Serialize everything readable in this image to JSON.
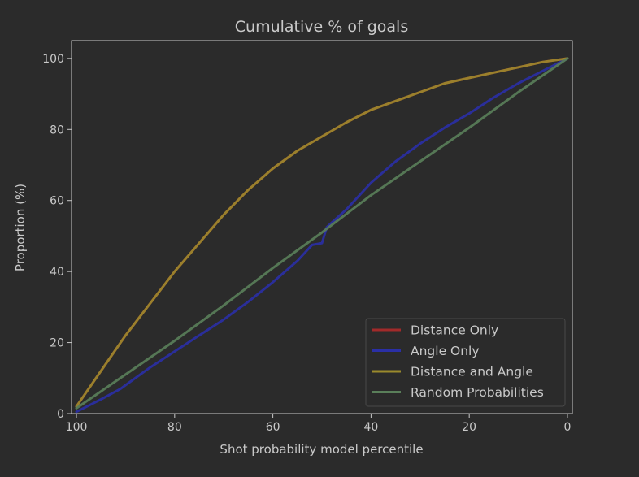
{
  "chart_data": {
    "type": "line",
    "title": "Cumulative % of goals",
    "xlabel": "Shot probability model percentile",
    "ylabel": "Proportion (%)",
    "xlim": [
      101,
      -1
    ],
    "ylim": [
      0,
      105
    ],
    "x_inverted": true,
    "xticks": [
      100,
      80,
      60,
      40,
      20,
      0
    ],
    "yticks": [
      0,
      20,
      40,
      60,
      80,
      100
    ],
    "grid": false,
    "legend_position": "lower-right",
    "series": [
      {
        "name": "Distance Only",
        "color": "#a12a2a",
        "x": [
          100,
          95,
          90,
          85,
          80,
          75,
          70,
          65,
          60,
          55,
          50,
          45,
          40,
          35,
          30,
          25,
          20,
          15,
          10,
          5,
          0
        ],
        "y": [
          2,
          12,
          22,
          31,
          40,
          48,
          56,
          63,
          69,
          74,
          78,
          82,
          85.5,
          88,
          90.5,
          93,
          94.5,
          96,
          97.5,
          99,
          100
        ]
      },
      {
        "name": "Angle Only",
        "color": "#2a2fa6",
        "x": [
          100,
          95,
          91,
          90,
          85,
          80,
          75,
          70,
          65,
          60,
          55,
          52,
          50,
          49,
          45,
          40,
          35,
          30,
          25,
          20,
          15,
          10,
          5,
          0
        ],
        "y": [
          0.5,
          4,
          7,
          8,
          13,
          17.5,
          22,
          26.5,
          31.5,
          37,
          43,
          47.5,
          48,
          52.5,
          57.5,
          65,
          71,
          76,
          80.5,
          84.5,
          89,
          93,
          96.5,
          100
        ]
      },
      {
        "name": "Distance and Angle",
        "color": "#9a8a2c",
        "x": [
          100,
          95,
          90,
          85,
          80,
          75,
          70,
          65,
          60,
          55,
          50,
          45,
          40,
          35,
          30,
          25,
          20,
          15,
          10,
          5,
          0
        ],
        "y": [
          2,
          12,
          22,
          31,
          40,
          48,
          56,
          63,
          69,
          74,
          78,
          82,
          85.5,
          88,
          90.5,
          93,
          94.5,
          96,
          97.5,
          99,
          100
        ]
      },
      {
        "name": "Random Probabilities",
        "color": "#5a7f5a",
        "x": [
          100,
          90,
          80,
          70,
          60,
          50,
          40,
          30,
          20,
          10,
          0
        ],
        "y": [
          1.5,
          11,
          20.5,
          30.5,
          41,
          51,
          61.5,
          71,
          80.5,
          90.5,
          100
        ]
      }
    ]
  }
}
